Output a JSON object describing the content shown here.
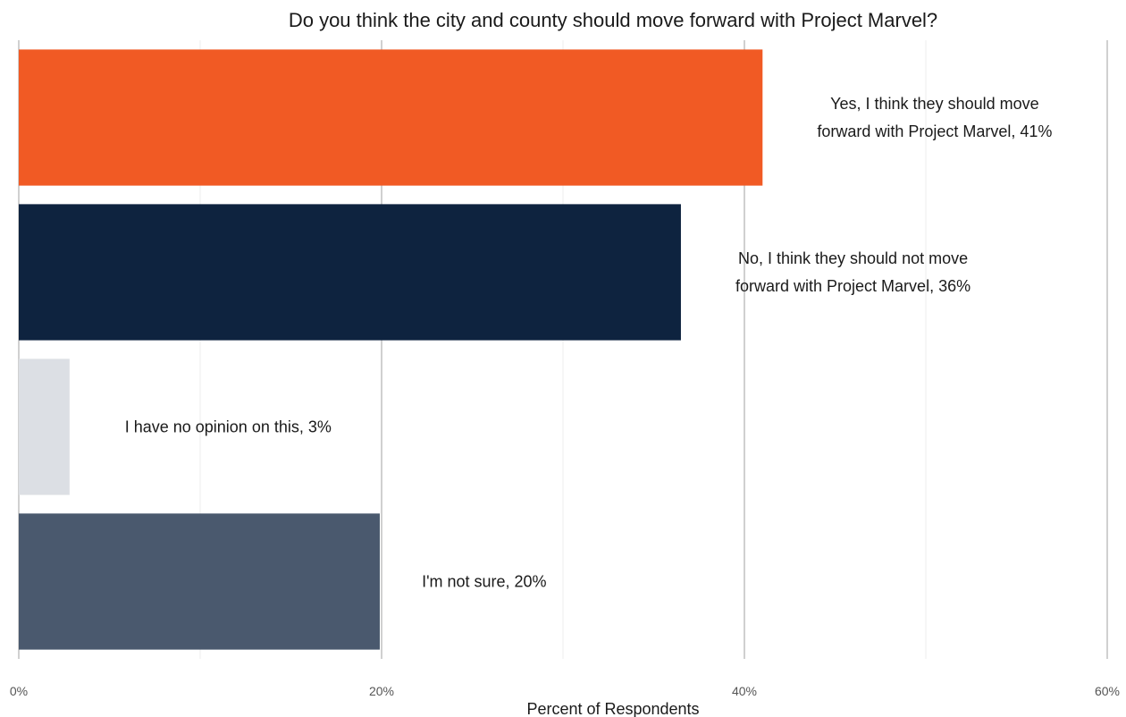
{
  "chart_data": {
    "type": "bar",
    "orientation": "horizontal",
    "title": "Do you think the city and county should move forward with Project Marvel?",
    "xlabel": "Percent of Respondents",
    "ylabel": "",
    "xlim": [
      0,
      60
    ],
    "x_ticks": [
      {
        "value": 0,
        "label": "0%"
      },
      {
        "value": 20,
        "label": "20%"
      },
      {
        "value": 40,
        "label": "40%"
      },
      {
        "value": 60,
        "label": "60%"
      }
    ],
    "grid": true,
    "categories": [
      {
        "value": 41,
        "color": "#f15a24",
        "label_lines": [
          "Yes, I think they should move",
          "forward with Project Marvel, 41%"
        ]
      },
      {
        "value": 36.5,
        "color": "#0e233f",
        "label_lines": [
          "No, I think they should not move",
          "forward with Project Marvel, 36%"
        ]
      },
      {
        "value": 2.8,
        "color": "#dcdfe4",
        "label_lines": [
          "I have no opinion on this, 3%"
        ]
      },
      {
        "value": 19.9,
        "color": "#4a596e",
        "label_lines": [
          "I'm not sure, 20%"
        ]
      }
    ]
  }
}
